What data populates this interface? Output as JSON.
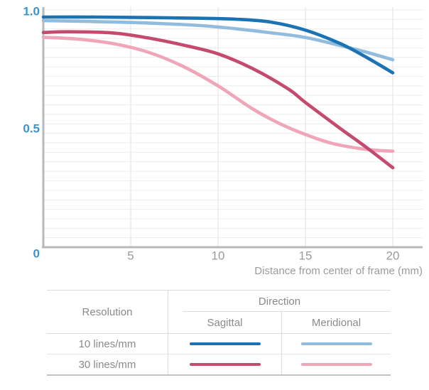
{
  "chart_data": {
    "type": "line",
    "title": "",
    "xlabel": "Distance from center of frame (mm)",
    "ylabel": "",
    "xlim": [
      0,
      21.7
    ],
    "ylim": [
      0,
      1.0
    ],
    "grid": {
      "horizontal_step": 0.04,
      "vertical_lines_at": [
        5,
        10,
        15,
        20
      ],
      "on": true
    },
    "legend_position": "bottom-table",
    "x_ticks": [
      {
        "value": 5,
        "label": "5"
      },
      {
        "value": 10,
        "label": "10"
      },
      {
        "value": 15,
        "label": "15"
      },
      {
        "value": 20,
        "label": "20"
      }
    ],
    "y_ticks": [
      {
        "value": 1.0,
        "label": "1.0"
      },
      {
        "value": 0.5,
        "label": "0.5"
      },
      {
        "value": 0,
        "label": "0"
      }
    ],
    "series": [
      {
        "name": "10 lines/mm Sagittal",
        "color": "#1b73b3",
        "points": [
          [
            0,
            0.97
          ],
          [
            3,
            0.97
          ],
          [
            6,
            0.968
          ],
          [
            9,
            0.965
          ],
          [
            11,
            0.961
          ],
          [
            13,
            0.949
          ],
          [
            15,
            0.915
          ],
          [
            17,
            0.858
          ],
          [
            18.5,
            0.8
          ],
          [
            20,
            0.735
          ]
        ]
      },
      {
        "name": "10 lines/mm Meridional",
        "color": "#92bcdd",
        "points": [
          [
            0,
            0.955
          ],
          [
            3,
            0.951
          ],
          [
            6,
            0.945
          ],
          [
            9,
            0.934
          ],
          [
            11,
            0.921
          ],
          [
            13,
            0.904
          ],
          [
            15,
            0.884
          ],
          [
            17,
            0.85
          ],
          [
            18.5,
            0.822
          ],
          [
            20,
            0.79
          ]
        ]
      },
      {
        "name": "30 lines/mm Sagittal",
        "color": "#c44a6e",
        "points": [
          [
            0,
            0.905
          ],
          [
            1.5,
            0.908
          ],
          [
            4,
            0.903
          ],
          [
            6,
            0.882
          ],
          [
            8,
            0.852
          ],
          [
            10,
            0.815
          ],
          [
            12,
            0.752
          ],
          [
            14,
            0.668
          ],
          [
            15,
            0.61
          ],
          [
            17,
            0.5
          ],
          [
            18.5,
            0.42
          ],
          [
            20,
            0.335
          ]
        ]
      },
      {
        "name": "30 lines/mm Meridional",
        "color": "#f0a6b8",
        "points": [
          [
            0,
            0.885
          ],
          [
            2,
            0.877
          ],
          [
            4,
            0.858
          ],
          [
            6,
            0.822
          ],
          [
            8,
            0.762
          ],
          [
            10,
            0.68
          ],
          [
            12,
            0.582
          ],
          [
            13.5,
            0.522
          ],
          [
            15,
            0.475
          ],
          [
            16.5,
            0.438
          ],
          [
            18,
            0.417
          ],
          [
            19,
            0.409
          ],
          [
            20,
            0.405
          ]
        ]
      }
    ]
  },
  "legend_table": {
    "resolution_header": "Resolution",
    "direction_header": "Direction",
    "sagittal_header": "Sagittal",
    "meridional_header": "Meridional",
    "rows": [
      {
        "label": "10 lines/mm",
        "sagittal_color": "#1b73b3",
        "meridional_color": "#92bcdd"
      },
      {
        "label": "30 lines/mm",
        "sagittal_color": "#c44a6e",
        "meridional_color": "#f0a6b8"
      }
    ]
  },
  "colors": {
    "y_tick_label": "#3e92cc",
    "x_tick_label": "#9b9b9b",
    "axis_title": "#9b9b9b",
    "axis_line": "#b8b8b8",
    "grid_horizontal": "#ececec",
    "grid_vertical": "#e2e2e2",
    "table_text": "#8a8a8a",
    "background": "#ffffff"
  }
}
